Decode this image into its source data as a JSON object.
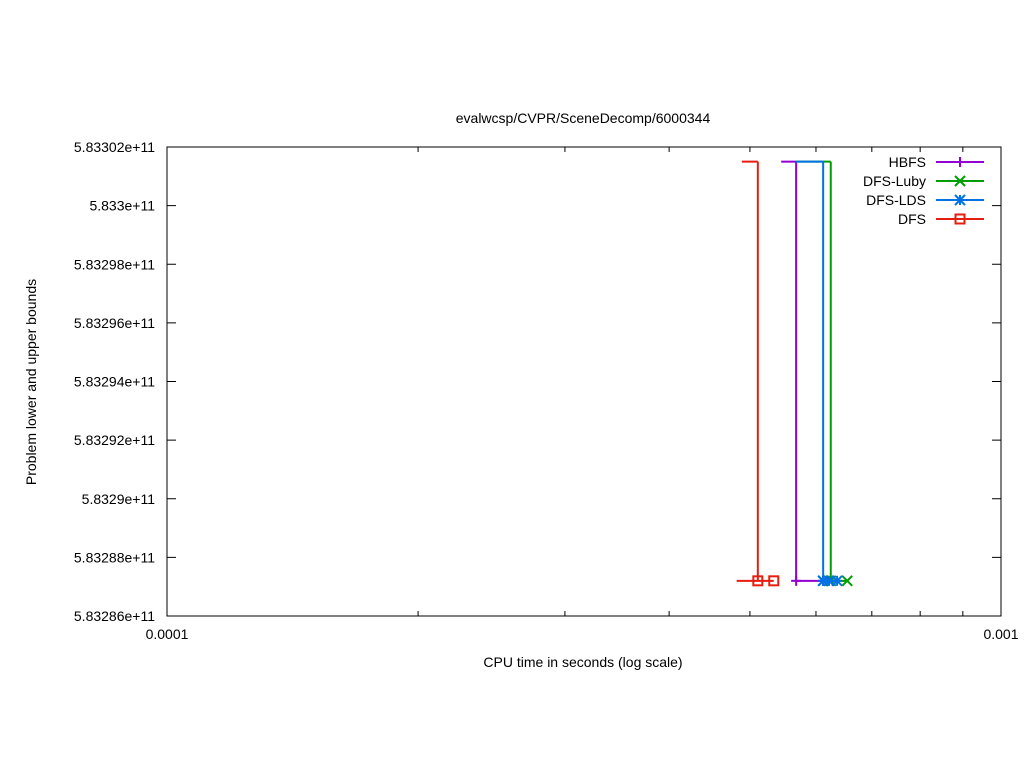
{
  "chart_data": {
    "type": "line",
    "title": "evalwcsp/CVPR/SceneDecomp/6000344",
    "xlabel": "CPU time in seconds (log scale)",
    "ylabel": "Problem lower and upper bounds",
    "x_scale": "log",
    "xlim": [
      0.0001,
      0.001
    ],
    "ylim": [
      583286000000,
      583302000000
    ],
    "x_ticks": [
      {
        "value": 0.0001,
        "label": "0.0001"
      },
      {
        "value": 0.001,
        "label": "0.001"
      }
    ],
    "y_ticks": [
      {
        "value": 583286000000,
        "label": "5.83286e+11"
      },
      {
        "value": 583288000000,
        "label": "5.83288e+11"
      },
      {
        "value": 583290000000,
        "label": "5.8329e+11"
      },
      {
        "value": 583292000000,
        "label": "5.83292e+11"
      },
      {
        "value": 583294000000,
        "label": "5.83294e+11"
      },
      {
        "value": 583296000000,
        "label": "5.83296e+11"
      },
      {
        "value": 583298000000,
        "label": "5.83298e+11"
      },
      {
        "value": 583300000000,
        "label": "5.833e+11"
      },
      {
        "value": 583302000000,
        "label": "5.83302e+11"
      }
    ],
    "grid": false,
    "legend_position": "top-right",
    "series": [
      {
        "name": "HBFS",
        "color": "#9400d3",
        "marker": "plus",
        "upper": [
          {
            "x": 0.000545,
            "y": 583301500000
          },
          {
            "x": 0.000568,
            "y": 583301500000
          }
        ],
        "lower": [
          {
            "x": 0.000568,
            "y": 583287200000
          },
          {
            "x": 0.000612,
            "y": 583287200000
          }
        ],
        "points": [
          {
            "x": 0.000568,
            "y": 583287200000
          },
          {
            "x": 0.000612,
            "y": 583287200000
          }
        ]
      },
      {
        "name": "DFS-Luby",
        "color": "#009e00",
        "marker": "cross",
        "upper": [
          {
            "x": 0.000568,
            "y": 583301500000
          },
          {
            "x": 0.000625,
            "y": 583301500000
          }
        ],
        "lower": [
          {
            "x": 0.000625,
            "y": 583287200000
          },
          {
            "x": 0.000654,
            "y": 583287200000
          }
        ],
        "points": [
          {
            "x": 0.000612,
            "y": 583287200000
          },
          {
            "x": 0.000625,
            "y": 583287200000
          },
          {
            "x": 0.000654,
            "y": 583287200000
          }
        ]
      },
      {
        "name": "DFS-LDS",
        "color": "#0072e6",
        "marker": "star",
        "upper": [
          {
            "x": 0.000568,
            "y": 583301500000
          },
          {
            "x": 0.000612,
            "y": 583301500000
          }
        ],
        "lower": [
          {
            "x": 0.000612,
            "y": 583287200000
          },
          {
            "x": 0.000636,
            "y": 583287200000
          }
        ],
        "points": [
          {
            "x": 0.000612,
            "y": 583287200000
          },
          {
            "x": 0.000622,
            "y": 583287200000
          },
          {
            "x": 0.000636,
            "y": 583287200000
          }
        ]
      },
      {
        "name": "DFS",
        "color": "#e51e10",
        "marker": "square",
        "upper": [
          {
            "x": 0.000489,
            "y": 583301500000
          },
          {
            "x": 0.000511,
            "y": 583301500000
          }
        ],
        "lower": [
          {
            "x": 0.000482,
            "y": 583287200000
          },
          {
            "x": 0.000534,
            "y": 583287200000
          }
        ],
        "points": [
          {
            "x": 0.000511,
            "y": 583287200000
          },
          {
            "x": 0.000534,
            "y": 583287200000
          }
        ]
      }
    ]
  }
}
